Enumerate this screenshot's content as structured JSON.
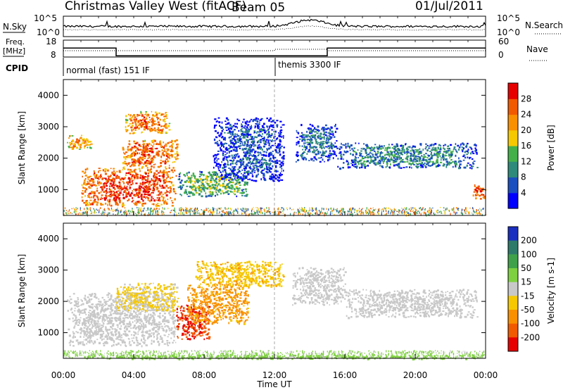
{
  "header": {
    "station": "Christmas Valley West (fitACF)",
    "beam": "Beam 05",
    "date": "01/Jul/2011"
  },
  "status_panels": {
    "nsky_label": "N.Sky",
    "nsky_ticks": [
      "10^5",
      "10^0"
    ],
    "nsearch_label": "N.Search",
    "nsearch_ticks": [
      "10^5",
      "10^0"
    ],
    "freq_label": "Freq.",
    "freq_unit": "[MHz]",
    "freq_ticks": [
      "18",
      "8"
    ],
    "nave_label": "Nave",
    "nave_ticks": [
      "60",
      "0"
    ],
    "cpid_label": "CPID",
    "cpid_modes": [
      {
        "name": "normal (fast) 151 IF",
        "start_hour": 0
      },
      {
        "name": "themis 3300 IF",
        "start_hour": 12
      }
    ],
    "freq_profile_mhz": [
      {
        "from": 0,
        "to": 3,
        "value": 13.8
      },
      {
        "from": 3,
        "to": 15,
        "value": 8.8
      },
      {
        "from": 15,
        "to": 24,
        "value": 13.8
      }
    ]
  },
  "panels": {
    "y_label": "Slant Range [km]",
    "y_ticks": [
      "1000",
      "2000",
      "3000",
      "4000"
    ],
    "x_label": "Time UT",
    "x_ticks": [
      "00:00",
      "04:00",
      "08:00",
      "12:00",
      "16:00",
      "20:00",
      "00:00"
    ],
    "power_colorbar": {
      "label": "Power [dB]",
      "ticks": [
        "4",
        "8",
        "12",
        "16",
        "20",
        "24",
        "28"
      ],
      "colors": [
        "#0000ff",
        "#1a4fbf",
        "#2e8a7a",
        "#44b04a",
        "#f5c800",
        "#f99000",
        "#f25a00",
        "#e60000"
      ]
    },
    "velocity_colorbar": {
      "label": "Velocity [m s-1]",
      "ticks": [
        "200",
        "100",
        "50",
        "15",
        "-15",
        "-50",
        "-100",
        "-200"
      ],
      "colors": [
        "#1a2fbf",
        "#2e7a6a",
        "#3fa24a",
        "#7ed040",
        "#c8c8c8",
        "#f5c800",
        "#f99000",
        "#f25a00",
        "#e60000"
      ]
    }
  },
  "chart_data": [
    {
      "type": "heatmap",
      "title": "Power",
      "x_range_hours": [
        0,
        24
      ],
      "y_range_km": [
        180,
        4500
      ],
      "colorbar_label": "Power [dB]",
      "colorbar_range": [
        0,
        30
      ],
      "echo_regions": [
        {
          "t0": 0.2,
          "t1": 1.6,
          "r0": 2300,
          "r1": 2750,
          "power_db": 22
        },
        {
          "t0": 1.0,
          "t1": 6.4,
          "r0": 500,
          "r1": 1700,
          "power_db": 28
        },
        {
          "t0": 3.3,
          "t1": 6.5,
          "r0": 1700,
          "r1": 2600,
          "power_db": 26
        },
        {
          "t0": 3.5,
          "t1": 6.0,
          "r0": 2800,
          "r1": 3500,
          "power_db": 25
        },
        {
          "t0": 6.5,
          "t1": 10.5,
          "r0": 800,
          "r1": 1600,
          "power_db": 14
        },
        {
          "t0": 8.5,
          "t1": 12.5,
          "r0": 1300,
          "r1": 3300,
          "power_db": 6
        },
        {
          "t0": 13.2,
          "t1": 15.5,
          "r0": 1900,
          "r1": 3100,
          "power_db": 8
        },
        {
          "t0": 15.5,
          "t1": 23.5,
          "r0": 1700,
          "r1": 2500,
          "power_db": 10
        },
        {
          "t0": 23.2,
          "t1": 24.0,
          "r0": 700,
          "r1": 1200,
          "power_db": 26
        }
      ]
    },
    {
      "type": "heatmap",
      "title": "Velocity",
      "x_range_hours": [
        0,
        24
      ],
      "y_range_km": [
        180,
        4500
      ],
      "colorbar_label": "Velocity [m s-1]",
      "colorbar_range": [
        -250,
        250
      ],
      "echo_regions": [
        {
          "t0": 0.2,
          "t1": 6.4,
          "r0": 600,
          "r1": 2300,
          "velocity": 0
        },
        {
          "t0": 3.0,
          "t1": 6.5,
          "r0": 1700,
          "r1": 2600,
          "velocity": -20
        },
        {
          "t0": 6.4,
          "t1": 8.3,
          "r0": 800,
          "r1": 1900,
          "velocity": -200
        },
        {
          "t0": 7.0,
          "t1": 10.5,
          "r0": 1300,
          "r1": 2600,
          "velocity": -60
        },
        {
          "t0": 7.5,
          "t1": 12.5,
          "r0": 2500,
          "r1": 3300,
          "velocity": -40
        },
        {
          "t0": 13.0,
          "t1": 16.0,
          "r0": 1900,
          "r1": 3100,
          "velocity": 0
        },
        {
          "t0": 16.0,
          "t1": 23.5,
          "r0": 1500,
          "r1": 2400,
          "velocity": 0
        },
        {
          "t0": 0.2,
          "t1": 24.0,
          "r0": 180,
          "r1": 300,
          "velocity": 30
        }
      ]
    }
  ]
}
